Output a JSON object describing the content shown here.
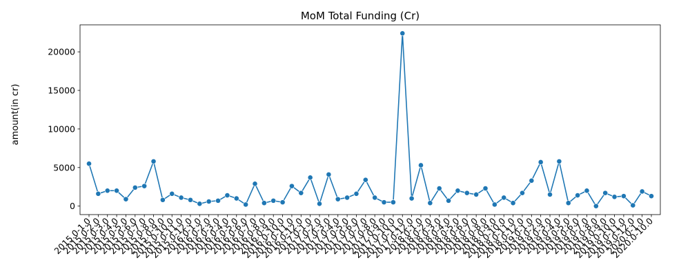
{
  "chart_data": {
    "type": "line",
    "title": "MoM Total Funding (Cr)",
    "xlabel": "",
    "ylabel": "amount(in cr)",
    "ylim": [
      -1100,
      23500
    ],
    "yticks": [
      0,
      5000,
      10000,
      15000,
      20000
    ],
    "ytick_labels": [
      "0",
      "5000",
      "10000",
      "15000",
      "20000"
    ],
    "grid": false,
    "legend": "none",
    "color": "#1f77b4",
    "categories": [
      "2015.0-1.0",
      "2015.0-2.0",
      "2015.0-3.0",
      "2015.0-4.0",
      "2015.0-5.0",
      "2015.0-6.0",
      "2015.0-7.0",
      "2015.0-8.0",
      "2015.0-9.0",
      "2015.0-10.0",
      "2015.0-11.0",
      "2015.0-12.0",
      "2016.0-1.0",
      "2016.0-2.0",
      "2016.0-3.0",
      "2016.0-4.0",
      "2016.0-5.0",
      "2016.0-6.0",
      "2016.0-7.0",
      "2016.0-8.0",
      "2016.0-9.0",
      "2016.0-10.0",
      "2016.0-11.0",
      "2016.0-12.0",
      "2017.0-1.0",
      "2017.0-2.0",
      "2017.0-3.0",
      "2017.0-4.0",
      "2017.0-5.0",
      "2017.0-6.0",
      "2017.0-7.0",
      "2017.0-8.0",
      "2017.0-9.0",
      "2017.0-10.0",
      "2017.0-11.0",
      "2017.0-12.0",
      "2018.0-1.0",
      "2018.0-2.0",
      "2018.0-3.0",
      "2018.0-4.0",
      "2018.0-5.0",
      "2018.0-6.0",
      "2018.0-7.0",
      "2018.0-8.0",
      "2018.0-9.0",
      "2018.0-10.0",
      "2018.0-11.0",
      "2018.0-12.0",
      "2019.0-1.0",
      "2019.0-2.0",
      "2019.0-3.0",
      "2019.0-4.0",
      "2019.0-5.0",
      "2019.0-6.0",
      "2019.0-7.0",
      "2019.0-8.0",
      "2019.0-9.0",
      "2019.0-10.0",
      "2019.0-11.0",
      "2019.0-12.0",
      "2020.0-1.0",
      "2020.0-10.0"
    ],
    "values": [
      5500,
      1600,
      2000,
      2000,
      900,
      2400,
      2600,
      5800,
      800,
      1600,
      1100,
      800,
      300,
      600,
      700,
      1400,
      1000,
      200,
      2900,
      400,
      700,
      500,
      2600,
      1700,
      3700,
      300,
      4100,
      900,
      1100,
      1600,
      3400,
      1100,
      500,
      500,
      22400,
      1000,
      5300,
      400,
      2300,
      700,
      2000,
      1700,
      1500,
      2300,
      200,
      1100,
      400,
      1700,
      3300,
      5700,
      1500,
      5800,
      400,
      1400,
      2000,
      0,
      1700,
      1200,
      1300,
      100,
      1900,
      1300
    ]
  }
}
